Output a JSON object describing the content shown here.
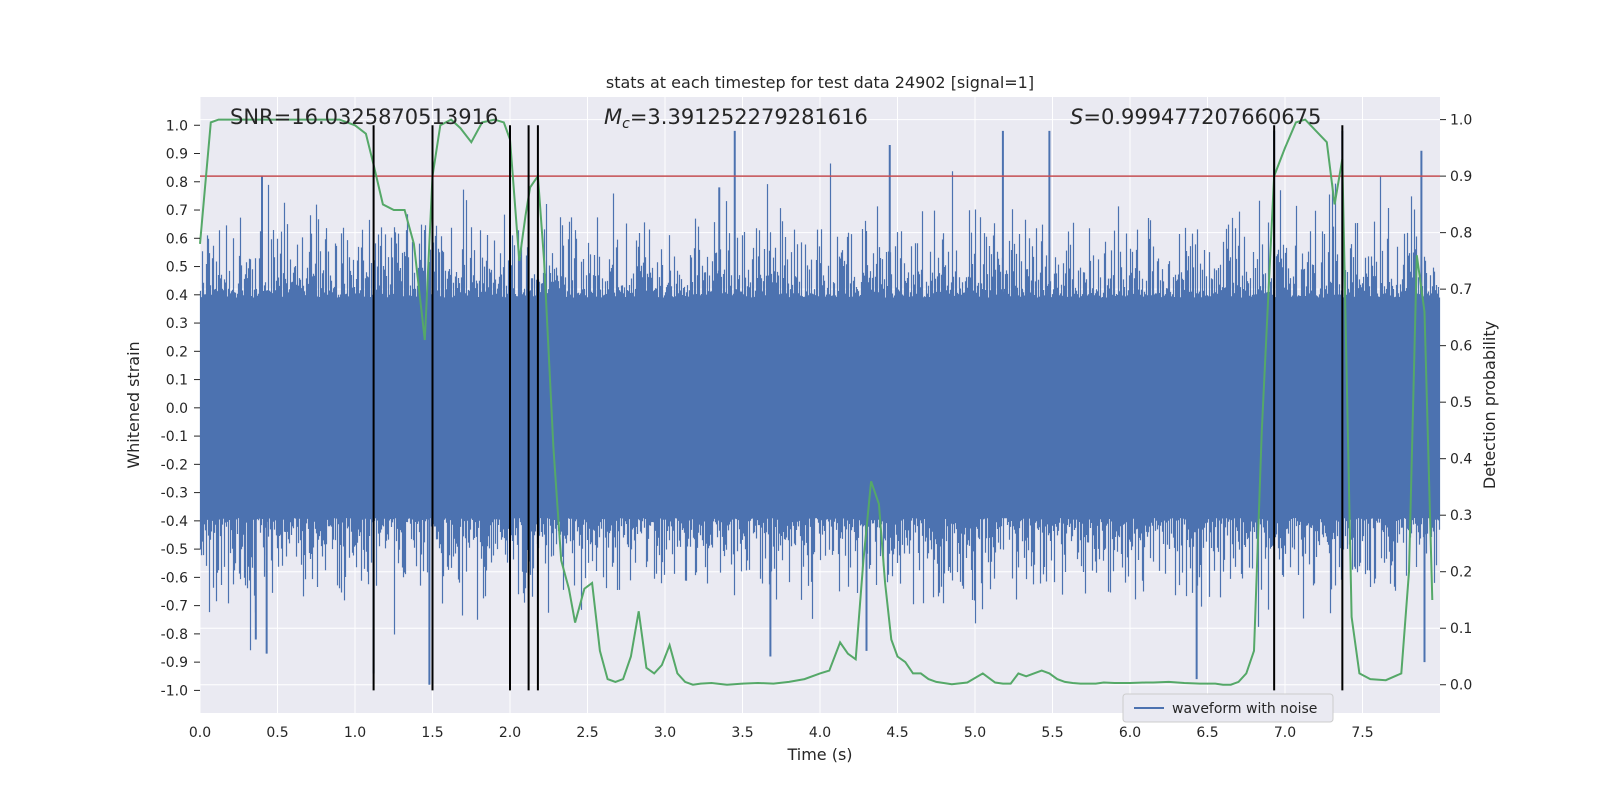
{
  "chart_data": {
    "type": "line",
    "title": "stats at each timestep for test data 24902 [signal=1]",
    "xlabel": "Time (s)",
    "ylabel": "Whitened strain",
    "ylabel_right": "Detection probability",
    "xlim": [
      0.0,
      8.0
    ],
    "ylim": [
      -1.08,
      1.1
    ],
    "ylim_right": [
      -0.05,
      1.04
    ],
    "x_ticks": [
      "0.0",
      "0.5",
      "1.0",
      "1.5",
      "2.0",
      "2.5",
      "3.0",
      "3.5",
      "4.0",
      "4.5",
      "5.0",
      "5.5",
      "6.0",
      "6.5",
      "7.0",
      "7.5"
    ],
    "y_ticks": [
      "1.0",
      "0.9",
      "0.8",
      "0.7",
      "0.6",
      "0.5",
      "0.4",
      "0.3",
      "0.2",
      "0.1",
      "0.0",
      "-0.1",
      "-0.2",
      "-0.3",
      "-0.4",
      "-0.5",
      "-0.6",
      "-0.7",
      "-0.8",
      "-0.9",
      "-1.0"
    ],
    "y_ticks_right": [
      "1.0",
      "0.9",
      "0.8",
      "0.7",
      "0.6",
      "0.5",
      "0.4",
      "0.3",
      "0.2",
      "0.1",
      "0.0"
    ],
    "grid": true,
    "legend_position": "bottom-right",
    "annotations": {
      "snr": "SNR=16.0325870513916",
      "mc_symbol": "M",
      "mc_sub": "c",
      "mc_value": "=3.391252279281616",
      "s_symbol": "S",
      "s_value": "=0.999477207660675"
    },
    "threshold": {
      "axis": "right",
      "value": 0.9,
      "color": "#c44e52"
    },
    "vertical_lines": {
      "color": "#000000",
      "x": [
        1.12,
        1.5,
        2.0,
        2.12,
        2.18,
        6.93,
        7.37
      ],
      "y_range": [
        -1.0,
        1.0
      ]
    },
    "series": [
      {
        "name": "waveform with noise",
        "axis": "left",
        "color": "#4c72b0",
        "kind": "noise",
        "core_amplitude": 0.39,
        "peaks": [
          {
            "x": 0.4,
            "y": 0.82
          },
          {
            "x": 0.36,
            "y": -0.82
          },
          {
            "x": 0.43,
            "y": -0.87
          },
          {
            "x": 1.48,
            "y": -0.98
          },
          {
            "x": 3.35,
            "y": 0.78
          },
          {
            "x": 3.45,
            "y": 0.98
          },
          {
            "x": 4.45,
            "y": 0.93
          },
          {
            "x": 5.18,
            "y": 0.98
          },
          {
            "x": 5.48,
            "y": 0.98
          },
          {
            "x": 6.43,
            "y": -0.96
          },
          {
            "x": 6.93,
            "y": 0.98
          },
          {
            "x": 7.37,
            "y": 0.98
          },
          {
            "x": 7.88,
            "y": 0.91
          },
          {
            "x": 3.68,
            "y": -0.88
          },
          {
            "x": 4.3,
            "y": -0.86
          },
          {
            "x": 1.12,
            "y": -0.94
          },
          {
            "x": 7.9,
            "y": -0.9
          }
        ]
      },
      {
        "name": "",
        "axis": "right",
        "color": "#55a868",
        "x": [
          0.0,
          0.07,
          0.12,
          0.2,
          0.3,
          0.5,
          0.7,
          0.9,
          1.0,
          1.07,
          1.12,
          1.18,
          1.25,
          1.32,
          1.38,
          1.43,
          1.45,
          1.5,
          1.55,
          1.62,
          1.68,
          1.75,
          1.82,
          1.9,
          1.96,
          2.0,
          2.06,
          2.1,
          2.13,
          2.18,
          2.22,
          2.28,
          2.33,
          2.38,
          2.42,
          2.48,
          2.53,
          2.58,
          2.63,
          2.68,
          2.73,
          2.78,
          2.83,
          2.88,
          2.93,
          2.98,
          3.03,
          3.08,
          3.13,
          3.18,
          3.23,
          3.3,
          3.4,
          3.5,
          3.6,
          3.7,
          3.8,
          3.9,
          4.0,
          4.06,
          4.13,
          4.18,
          4.23,
          4.28,
          4.33,
          4.38,
          4.42,
          4.46,
          4.5,
          4.55,
          4.6,
          4.65,
          4.7,
          4.75,
          4.85,
          4.95,
          5.05,
          5.13,
          5.18,
          5.23,
          5.28,
          5.33,
          5.38,
          5.43,
          5.48,
          5.53,
          5.58,
          5.63,
          5.68,
          5.73,
          5.78,
          5.83,
          5.9,
          6.0,
          6.1,
          6.15,
          6.25,
          6.35,
          6.45,
          6.55,
          6.6,
          6.65,
          6.7,
          6.75,
          6.8,
          6.85,
          6.93,
          7.0,
          7.07,
          7.13,
          7.2,
          7.27,
          7.32,
          7.37,
          7.43,
          7.48,
          7.55,
          7.65,
          7.75,
          7.8,
          7.85,
          7.9,
          7.95
        ],
        "values": [
          0.78,
          0.995,
          1.0,
          1.0,
          1.0,
          1.0,
          1.0,
          1.0,
          0.99,
          0.975,
          0.92,
          0.85,
          0.84,
          0.84,
          0.78,
          0.66,
          0.61,
          0.9,
          0.99,
          1.0,
          0.985,
          0.96,
          0.995,
          1.0,
          0.995,
          0.965,
          0.75,
          0.83,
          0.88,
          0.9,
          0.75,
          0.42,
          0.22,
          0.17,
          0.11,
          0.17,
          0.18,
          0.06,
          0.01,
          0.005,
          0.01,
          0.05,
          0.13,
          0.03,
          0.02,
          0.035,
          0.07,
          0.02,
          0.005,
          0.0,
          0.002,
          0.003,
          0.0,
          0.002,
          0.003,
          0.002,
          0.005,
          0.01,
          0.02,
          0.025,
          0.075,
          0.055,
          0.045,
          0.22,
          0.36,
          0.32,
          0.18,
          0.08,
          0.05,
          0.04,
          0.02,
          0.02,
          0.01,
          0.005,
          0.001,
          0.004,
          0.02,
          0.004,
          0.002,
          0.002,
          0.02,
          0.015,
          0.02,
          0.025,
          0.02,
          0.01,
          0.005,
          0.003,
          0.002,
          0.002,
          0.002,
          0.004,
          0.003,
          0.003,
          0.004,
          0.004,
          0.005,
          0.003,
          0.002,
          0.002,
          0.0,
          0.0,
          0.005,
          0.02,
          0.06,
          0.45,
          0.9,
          0.95,
          0.995,
          1.0,
          0.98,
          0.96,
          0.85,
          0.93,
          0.12,
          0.02,
          0.01,
          0.008,
          0.02,
          0.2,
          0.76,
          0.66,
          0.15
        ]
      }
    ]
  },
  "legend": {
    "label": "waveform with noise",
    "color": "#4c72b0"
  }
}
